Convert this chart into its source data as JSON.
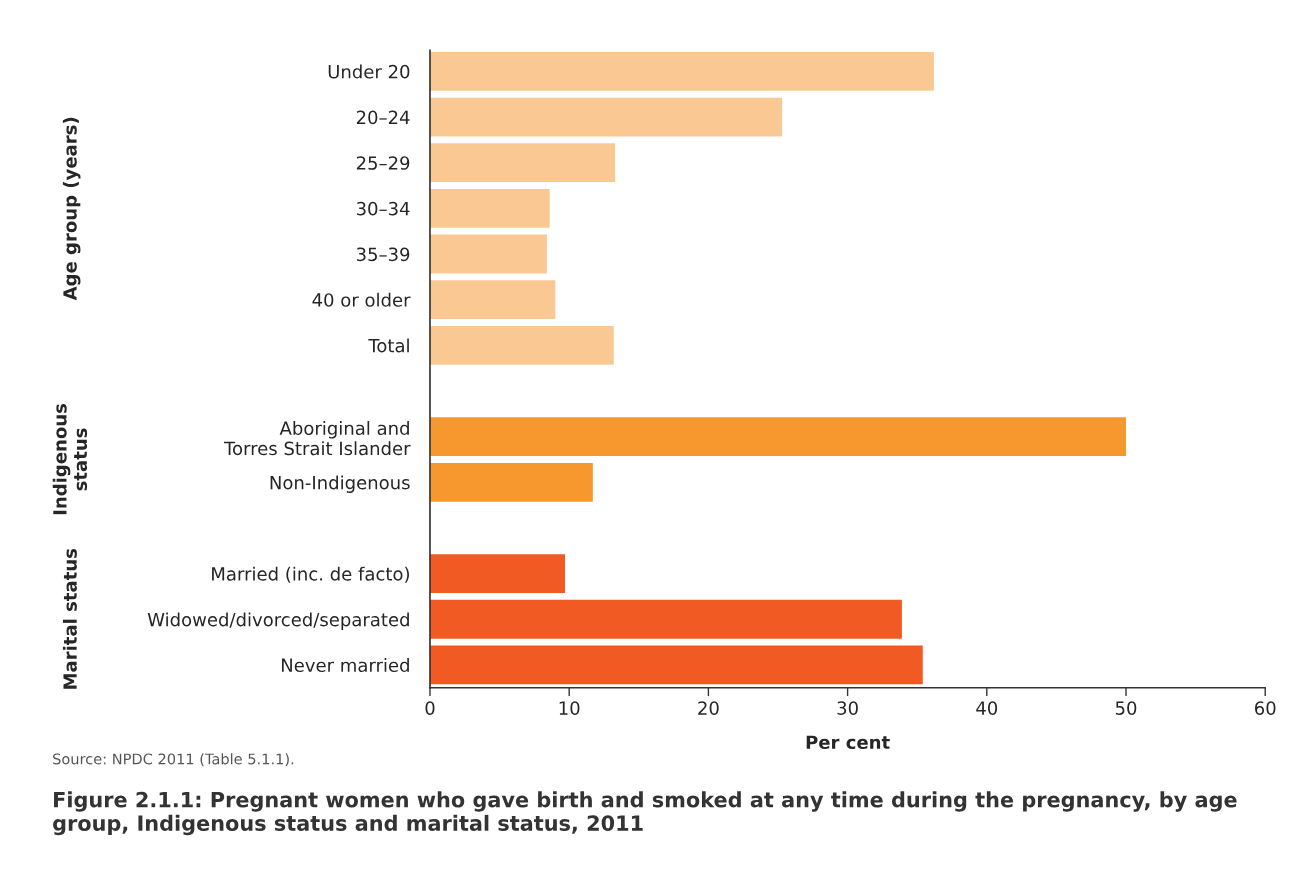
{
  "chart_data": {
    "type": "bar",
    "orientation": "horizontal",
    "title": "Figure 2.1.1: Pregnant women who gave birth and smoked at any time during the pregnancy, by age group, Indigenous status and marital status, 2011",
    "xlabel": "Per cent",
    "categories": [
      "Under 20",
      "20–24",
      "25–29",
      "30–34",
      "35–39",
      "40 or older",
      "Total",
      null,
      "Aboriginal and\nTorres Strait Islander",
      "Non-Indigenous",
      null,
      "Married (inc. de facto)",
      "Widowed/divorced/separated",
      "Never married"
    ],
    "values": [
      36.2,
      25.3,
      13.3,
      8.6,
      8.4,
      9.0,
      13.2,
      null,
      50.0,
      11.7,
      null,
      9.7,
      33.9,
      35.4
    ],
    "colors": [
      "#fac893",
      "#fac893",
      "#fac893",
      "#fac893",
      "#fac893",
      "#fac893",
      "#fac893",
      null,
      "#f7982f",
      "#f7982f",
      null,
      "#f15a22",
      "#f15a22",
      "#f15a22"
    ],
    "xlim": [
      0,
      60
    ],
    "xticks": [
      0,
      10,
      20,
      30,
      40,
      50,
      60
    ],
    "grid": false,
    "legend": false,
    "annotations": [
      "Source: NPDC 2011 (Table 5.1.1).",
      "Age group (years)",
      "Indigenous\nstatus",
      "Marital status"
    ]
  }
}
